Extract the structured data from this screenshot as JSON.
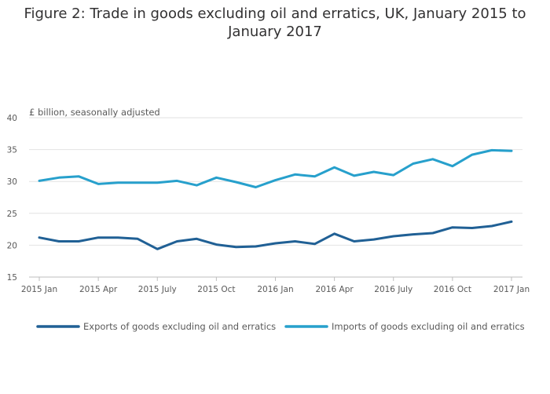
{
  "title_lines": [
    "Figure 2: Trade in goods excluding oil and erratics, UK, January 2015 to",
    "January 2017"
  ],
  "chart_data": {
    "type": "line",
    "title": "Figure 2: Trade in goods excluding oil and erratics, UK, January 2015 to January 2017",
    "ylabel": "£ billion, seasonally adjusted",
    "xlabel": "",
    "ylim": [
      15,
      40
    ],
    "yticks": [
      15,
      20,
      25,
      30,
      35,
      40
    ],
    "grid": true,
    "legend_position": "bottom",
    "x": [
      "2015 Jan",
      "2015 Feb",
      "2015 Mar",
      "2015 Apr",
      "2015 May",
      "2015 Jun",
      "2015 July",
      "2015 Aug",
      "2015 Sep",
      "2015 Oct",
      "2015 Nov",
      "2015 Dec",
      "2016 Jan",
      "2016 Feb",
      "2016 Mar",
      "2016 Apr",
      "2016 May",
      "2016 Jun",
      "2016 July",
      "2016 Aug",
      "2016 Sep",
      "2016 Oct",
      "2016 Nov",
      "2016 Dec",
      "2017 Jan"
    ],
    "xtick_labels": [
      {
        "index": 0,
        "label": "2015 Jan"
      },
      {
        "index": 3,
        "label": "2015 Apr"
      },
      {
        "index": 6,
        "label": "2015 July"
      },
      {
        "index": 9,
        "label": "2015 Oct"
      },
      {
        "index": 12,
        "label": "2016 Jan"
      },
      {
        "index": 15,
        "label": "2016 Apr"
      },
      {
        "index": 18,
        "label": "2016 July"
      },
      {
        "index": 21,
        "label": "2016 Oct"
      },
      {
        "index": 24,
        "label": "2017 Jan"
      }
    ],
    "series": [
      {
        "name": "Exports of goods excluding oil and erratics",
        "color": "#206095",
        "values": [
          21.2,
          20.6,
          20.6,
          21.2,
          21.2,
          21.0,
          19.4,
          20.6,
          21.0,
          20.1,
          19.7,
          19.8,
          20.3,
          20.6,
          20.2,
          21.8,
          20.6,
          20.9,
          21.4,
          21.7,
          21.9,
          22.8,
          22.7,
          23.0,
          23.7
        ]
      },
      {
        "name": "Imports of goods excluding oil and erratics",
        "color": "#27A0CC",
        "values": [
          30.1,
          30.6,
          30.8,
          29.6,
          29.8,
          29.8,
          29.8,
          30.1,
          29.4,
          30.6,
          29.9,
          29.1,
          30.2,
          31.1,
          30.8,
          32.2,
          30.9,
          31.5,
          31.0,
          32.8,
          33.5,
          32.4,
          34.2,
          34.9,
          34.8
        ]
      }
    ]
  }
}
